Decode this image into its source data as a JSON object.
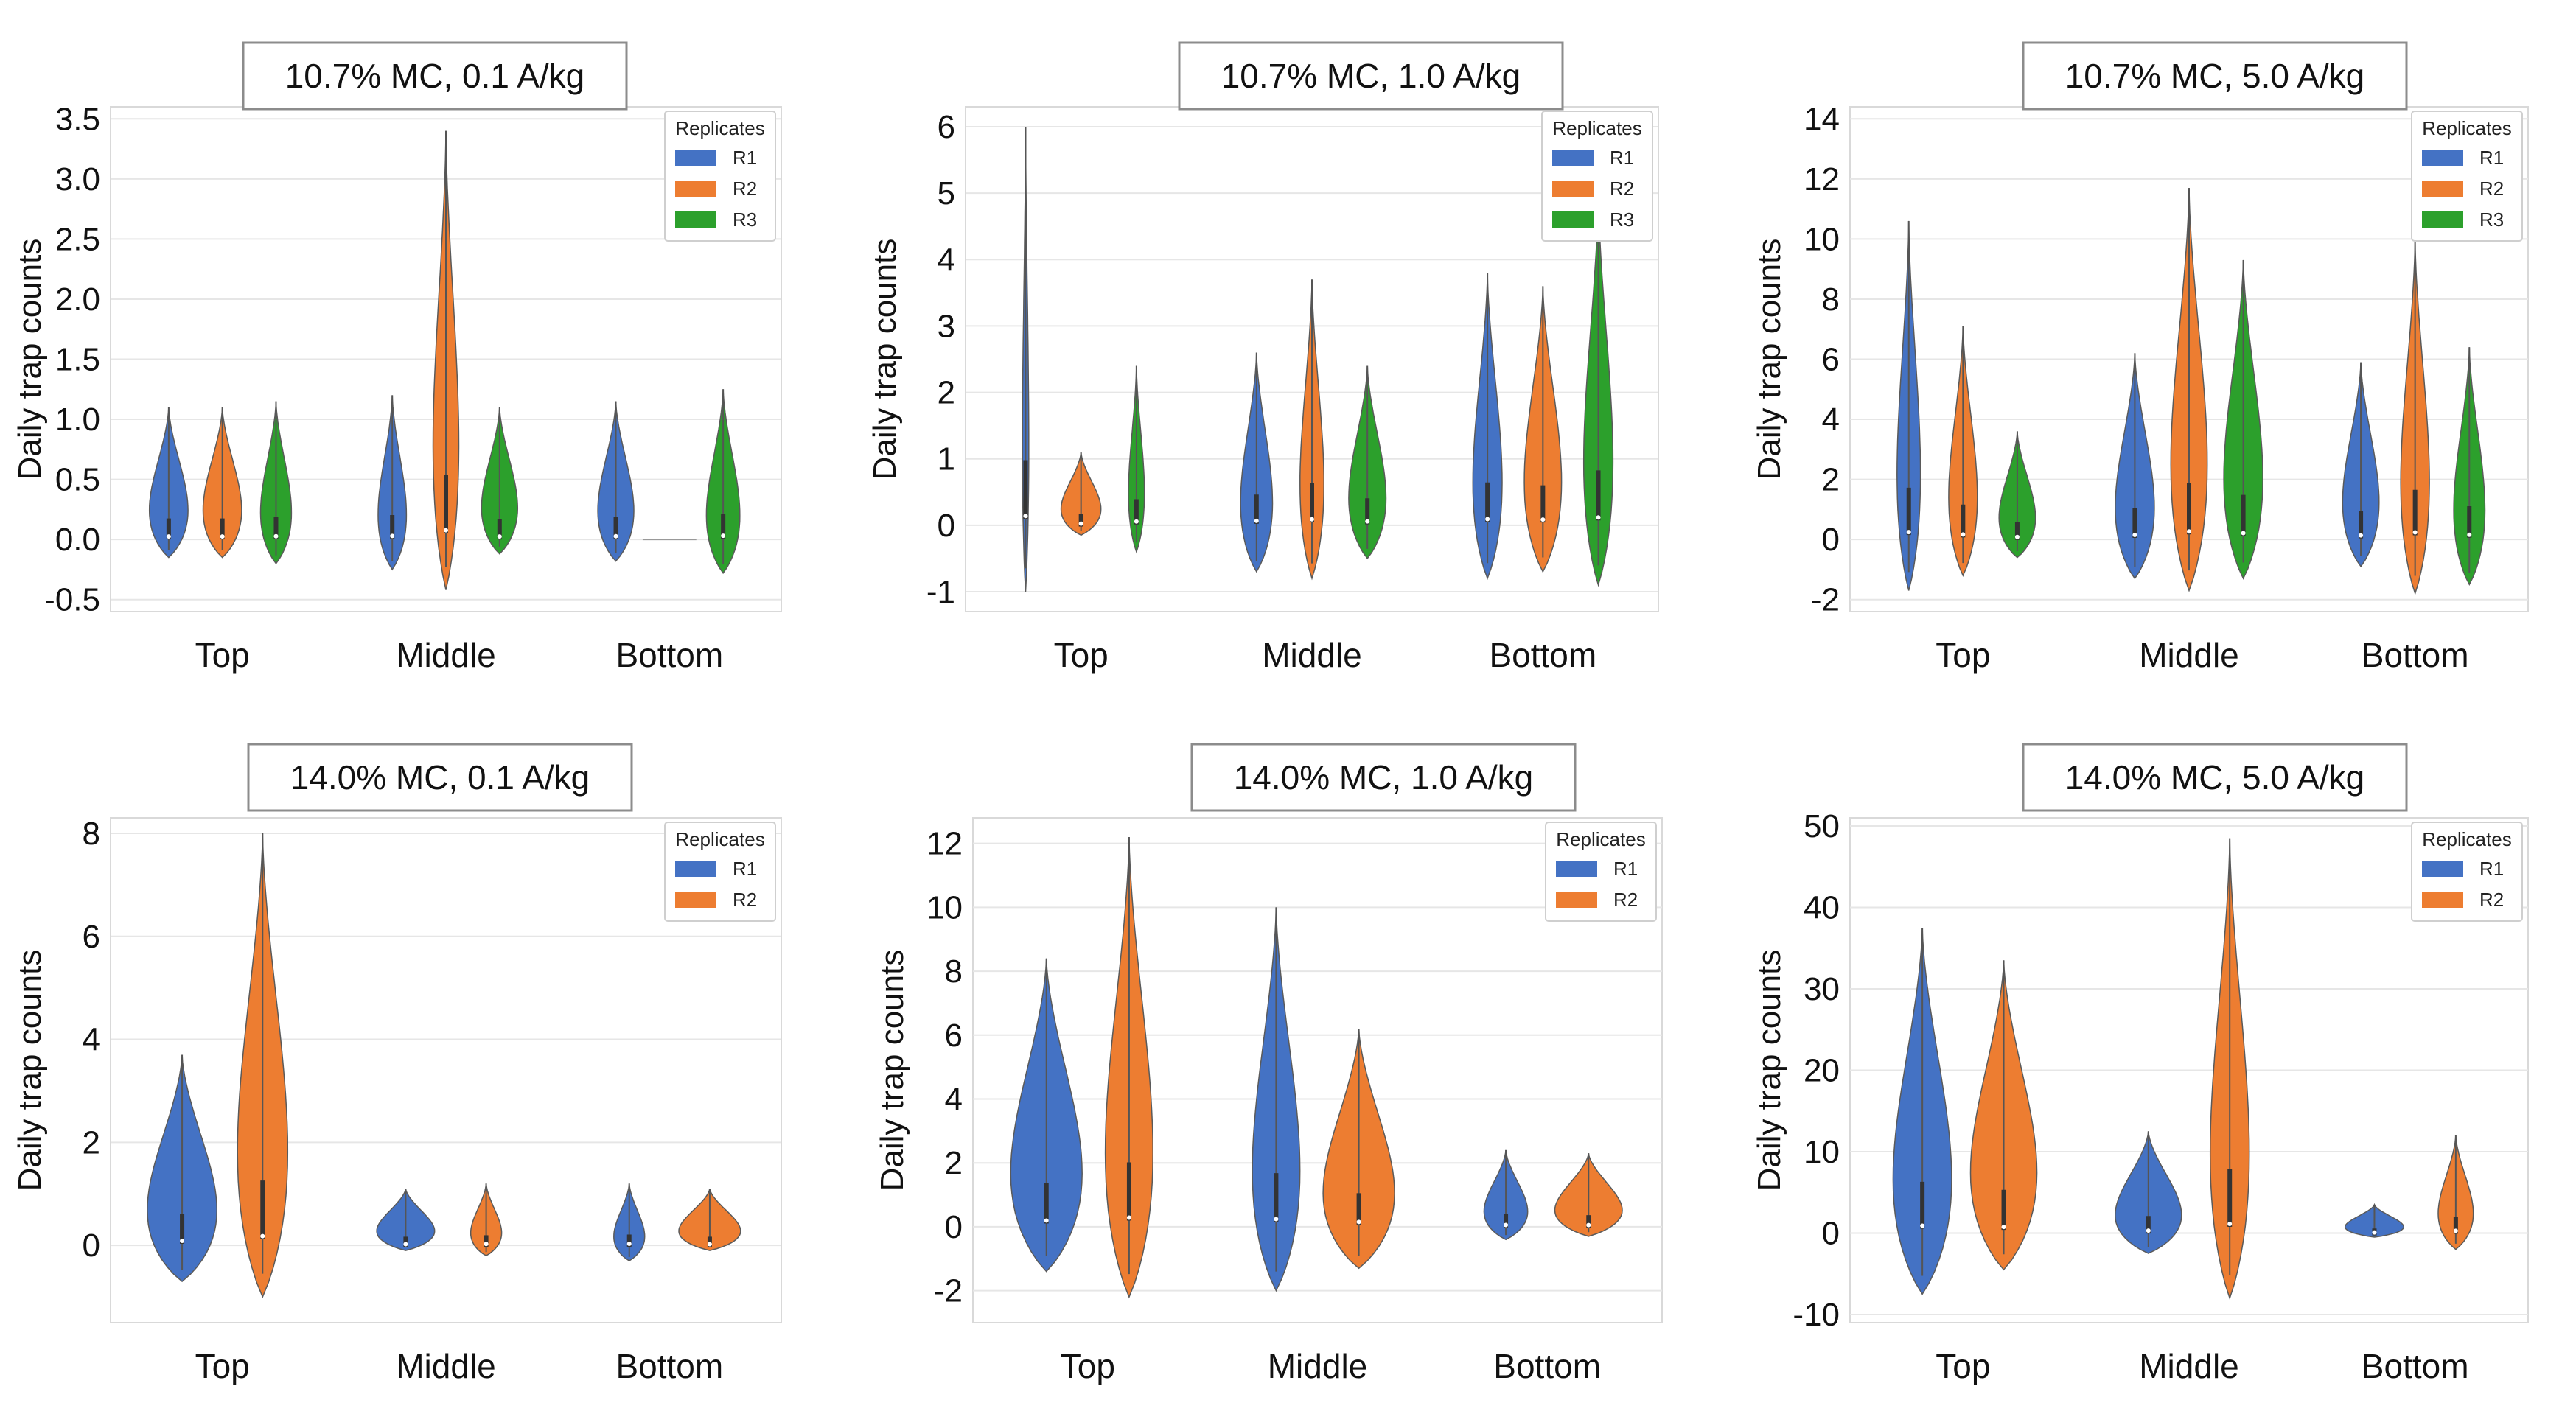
{
  "figure": {
    "chart_data": [
      {
        "type": "violin",
        "title": "10.7% MC, 0.1 A/kg",
        "ylabel": "Daily trap counts",
        "xlabel": "",
        "categories": [
          "Top",
          "Middle",
          "Bottom"
        ],
        "ylim": [
          -0.6,
          3.6
        ],
        "yticks": [
          -0.5,
          0.0,
          0.5,
          1.0,
          1.5,
          2.0,
          2.5,
          3.0,
          3.5
        ],
        "ytick_labels": [
          "-0.5",
          "0.0",
          "0.5",
          "1.0",
          "1.5",
          "2.0",
          "2.5",
          "3.0",
          "3.5"
        ],
        "legend_title": "Replicates",
        "legend_position": "top-right",
        "series": [
          {
            "name": "R1",
            "color": "#4472c4",
            "violins": [
              {
                "min": -0.15,
                "max": 1.1,
                "w": 0.75
              },
              {
                "min": -0.25,
                "max": 1.2,
                "w": 0.55
              },
              {
                "min": -0.18,
                "max": 1.15,
                "w": 0.7
              }
            ]
          },
          {
            "name": "R2",
            "color": "#ed7d31",
            "violins": [
              {
                "min": -0.15,
                "max": 1.1,
                "w": 0.75
              },
              {
                "min": -0.42,
                "max": 3.4,
                "w": 0.5
              },
              {
                "min": 0.0,
                "max": 0.0,
                "w": 0.0
              }
            ]
          },
          {
            "name": "R3",
            "color": "#2ca02c",
            "violins": [
              {
                "min": -0.2,
                "max": 1.15,
                "w": 0.6
              },
              {
                "min": -0.12,
                "max": 1.1,
                "w": 0.7
              },
              {
                "min": -0.28,
                "max": 1.25,
                "w": 0.65
              }
            ]
          }
        ]
      },
      {
        "type": "violin",
        "title": "10.7% MC, 1.0 A/kg",
        "ylabel": "Daily trap counts",
        "xlabel": "",
        "categories": [
          "Top",
          "Middle",
          "Bottom"
        ],
        "ylim": [
          -1.3,
          6.3
        ],
        "yticks": [
          -1,
          0,
          1,
          2,
          3,
          4,
          5,
          6
        ],
        "ytick_labels": [
          "-1",
          "0",
          "1",
          "2",
          "3",
          "4",
          "5",
          "6"
        ],
        "legend_title": "Replicates",
        "legend_position": "top-right",
        "series": [
          {
            "name": "R1",
            "color": "#4472c4",
            "violins": [
              {
                "min": -1.0,
                "max": 6.0,
                "w": 0.12
              },
              {
                "min": -0.7,
                "max": 2.6,
                "w": 0.6
              },
              {
                "min": -0.8,
                "max": 3.8,
                "w": 0.55
              }
            ]
          },
          {
            "name": "R2",
            "color": "#ed7d31",
            "violins": [
              {
                "min": -0.15,
                "max": 1.1,
                "w": 0.75
              },
              {
                "min": -0.8,
                "max": 3.7,
                "w": 0.45
              },
              {
                "min": -0.7,
                "max": 3.6,
                "w": 0.7
              }
            ]
          },
          {
            "name": "R3",
            "color": "#2ca02c",
            "violins": [
              {
                "min": -0.4,
                "max": 2.4,
                "w": 0.3
              },
              {
                "min": -0.5,
                "max": 2.4,
                "w": 0.7
              },
              {
                "min": -0.9,
                "max": 5.0,
                "w": 0.55
              }
            ]
          }
        ]
      },
      {
        "type": "violin",
        "title": "10.7% MC, 5.0 A/kg",
        "ylabel": "Daily trap counts",
        "xlabel": "",
        "categories": [
          "Top",
          "Middle",
          "Bottom"
        ],
        "ylim": [
          -2.4,
          14.4
        ],
        "yticks": [
          -2,
          0,
          2,
          4,
          6,
          8,
          10,
          12,
          14
        ],
        "ytick_labels": [
          "-2",
          "0",
          "2",
          "4",
          "6",
          "8",
          "10",
          "12",
          "14"
        ],
        "legend_title": "Replicates",
        "legend_position": "top-right",
        "series": [
          {
            "name": "R1",
            "color": "#4472c4",
            "violins": [
              {
                "min": -1.7,
                "max": 10.6,
                "w": 0.45
              },
              {
                "min": -1.3,
                "max": 6.2,
                "w": 0.75
              },
              {
                "min": -0.9,
                "max": 5.9,
                "w": 0.7
              }
            ]
          },
          {
            "name": "R2",
            "color": "#ed7d31",
            "violins": [
              {
                "min": -1.2,
                "max": 7.1,
                "w": 0.55
              },
              {
                "min": -1.7,
                "max": 11.7,
                "w": 0.7
              },
              {
                "min": -1.8,
                "max": 10.0,
                "w": 0.55
              }
            ]
          },
          {
            "name": "R3",
            "color": "#2ca02c",
            "violins": [
              {
                "min": -0.6,
                "max": 3.6,
                "w": 0.7
              },
              {
                "min": -1.3,
                "max": 9.3,
                "w": 0.75
              },
              {
                "min": -1.5,
                "max": 6.4,
                "w": 0.6
              }
            ]
          }
        ]
      },
      {
        "type": "violin",
        "title": "14.0% MC, 0.1 A/kg",
        "ylabel": "Daily trap counts",
        "xlabel": "",
        "categories": [
          "Top",
          "Middle",
          "Bottom"
        ],
        "ylim": [
          -1.5,
          8.3
        ],
        "yticks": [
          0,
          2,
          4,
          6,
          8
        ],
        "ytick_labels": [
          "0",
          "2",
          "4",
          "6",
          "8"
        ],
        "legend_title": "Replicates",
        "legend_position": "top-right",
        "series": [
          {
            "name": "R1",
            "color": "#4472c4",
            "violins": [
              {
                "min": -0.7,
                "max": 3.7,
                "w": 0.9
              },
              {
                "min": -0.1,
                "max": 1.1,
                "w": 0.75
              },
              {
                "min": -0.3,
                "max": 1.2,
                "w": 0.4
              }
            ]
          },
          {
            "name": "R2",
            "color": "#ed7d31",
            "violins": [
              {
                "min": -1.0,
                "max": 8.0,
                "w": 0.65
              },
              {
                "min": -0.2,
                "max": 1.2,
                "w": 0.4
              },
              {
                "min": -0.1,
                "max": 1.1,
                "w": 0.8
              }
            ]
          }
        ]
      },
      {
        "type": "violin",
        "title": "14.0% MC, 1.0 A/kg",
        "ylabel": "Daily trap counts",
        "xlabel": "",
        "categories": [
          "Top",
          "Middle",
          "Bottom"
        ],
        "ylim": [
          -3.0,
          12.8
        ],
        "yticks": [
          -2,
          0,
          2,
          4,
          6,
          8,
          10,
          12
        ],
        "ytick_labels": [
          "-2",
          "0",
          "2",
          "4",
          "6",
          "8",
          "10",
          "12"
        ],
        "legend_title": "Replicates",
        "legend_position": "top-right",
        "series": [
          {
            "name": "R1",
            "color": "#4472c4",
            "violins": [
              {
                "min": -1.4,
                "max": 8.4,
                "w": 0.9
              },
              {
                "min": -2.0,
                "max": 10.0,
                "w": 0.6
              },
              {
                "min": -0.4,
                "max": 2.4,
                "w": 0.55
              }
            ]
          },
          {
            "name": "R2",
            "color": "#ed7d31",
            "violins": [
              {
                "min": -2.2,
                "max": 12.2,
                "w": 0.6
              },
              {
                "min": -1.3,
                "max": 6.2,
                "w": 0.9
              },
              {
                "min": -0.3,
                "max": 2.3,
                "w": 0.85
              }
            ]
          }
        ]
      },
      {
        "type": "violin",
        "title": "14.0% MC, 5.0 A/kg",
        "ylabel": "Daily trap counts",
        "xlabel": "",
        "categories": [
          "Top",
          "Middle",
          "Bottom"
        ],
        "ylim": [
          -11,
          51
        ],
        "yticks": [
          -10,
          0,
          10,
          20,
          30,
          40,
          50
        ],
        "ytick_labels": [
          "-10",
          "0",
          "10",
          "20",
          "30",
          "40",
          "50"
        ],
        "legend_title": "Replicates",
        "legend_position": "top-right",
        "series": [
          {
            "name": "R1",
            "color": "#4472c4",
            "violins": [
              {
                "min": -7.5,
                "max": 37.5,
                "w": 0.75
              },
              {
                "min": -2.5,
                "max": 12.5,
                "w": 0.85
              },
              {
                "min": -0.5,
                "max": 3.5,
                "w": 0.75
              }
            ]
          },
          {
            "name": "R2",
            "color": "#ed7d31",
            "violins": [
              {
                "min": -4.5,
                "max": 33.5,
                "w": 0.85
              },
              {
                "min": -8.0,
                "max": 48.5,
                "w": 0.5
              },
              {
                "min": -2.0,
                "max": 12.0,
                "w": 0.45
              }
            ]
          }
        ]
      }
    ]
  }
}
